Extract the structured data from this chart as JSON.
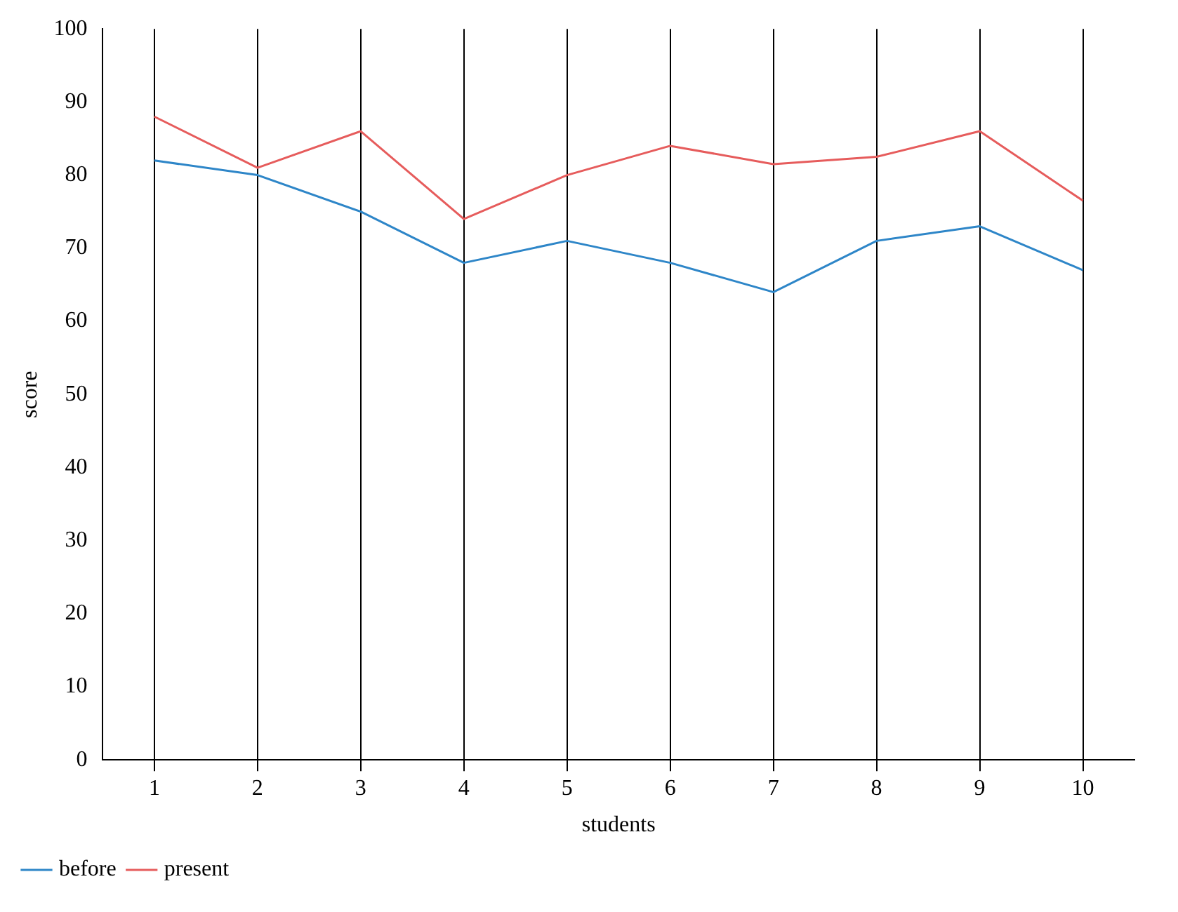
{
  "chart_data": {
    "type": "line",
    "xlabel": "students",
    "ylabel": "score",
    "x": [
      1,
      2,
      3,
      4,
      5,
      6,
      7,
      8,
      9,
      10
    ],
    "xlim": [
      0.5,
      10.5
    ],
    "xticks": [
      1,
      2,
      3,
      4,
      5,
      6,
      7,
      8,
      9,
      10
    ],
    "ylim": [
      0,
      100
    ],
    "yticks": [
      0,
      10,
      20,
      30,
      40,
      50,
      60,
      70,
      80,
      90,
      100
    ],
    "grid": "x",
    "legend": "bottom left",
    "marker": "none",
    "line_style": "solid",
    "series": [
      {
        "name": "before",
        "color": "#2e86c8",
        "values": [
          82,
          80,
          75,
          68,
          71,
          68,
          64,
          71,
          73,
          67
        ]
      },
      {
        "name": "present",
        "color": "#e65c5c",
        "values": [
          88,
          81,
          86,
          74,
          80,
          84,
          81.5,
          82.5,
          86,
          76.5
        ]
      }
    ]
  }
}
